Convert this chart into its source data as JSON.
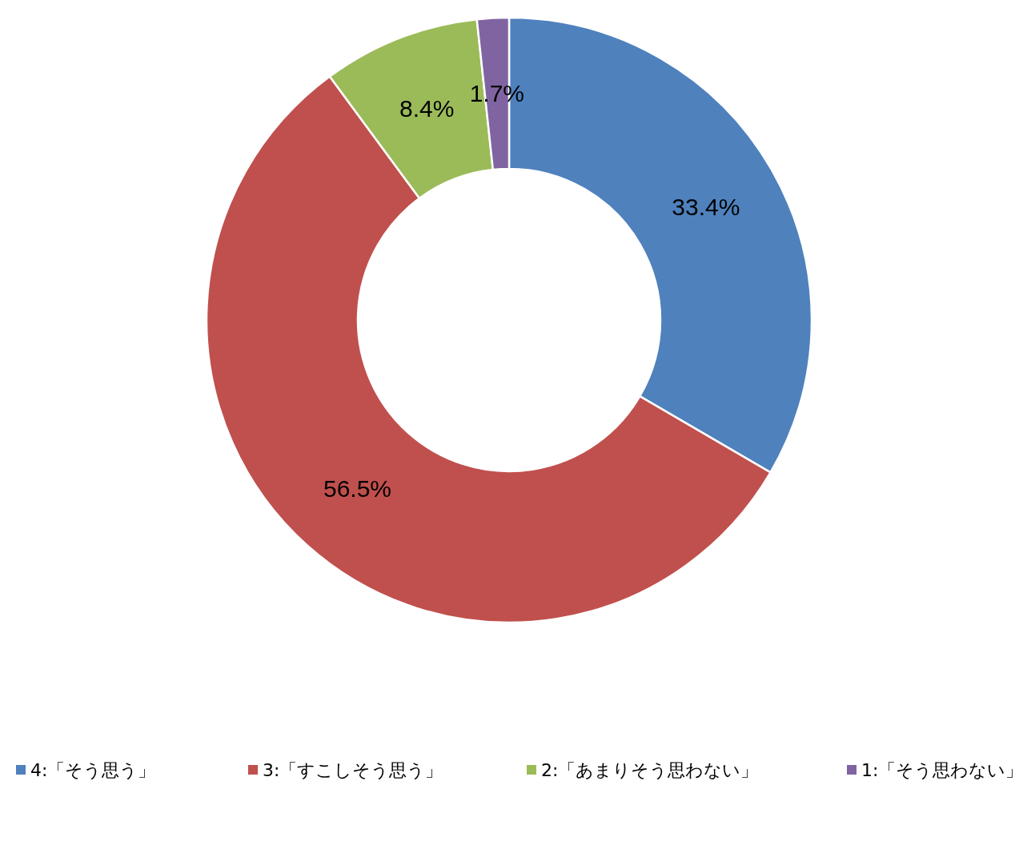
{
  "chart_data": {
    "type": "donut",
    "categories": [
      "4:「そう思う」",
      "3:「すこしそう思う」",
      "2:「あまりそう思わない」",
      "1:「そう思わない」"
    ],
    "values": [
      33.4,
      56.5,
      8.4,
      1.7
    ],
    "colors": [
      "#4f81bd",
      "#c0504d",
      "#9bbb59",
      "#8064a2"
    ],
    "value_labels": [
      "33.4%",
      "56.5%",
      "8.4%",
      "1.7%"
    ],
    "legend": "bottom"
  }
}
